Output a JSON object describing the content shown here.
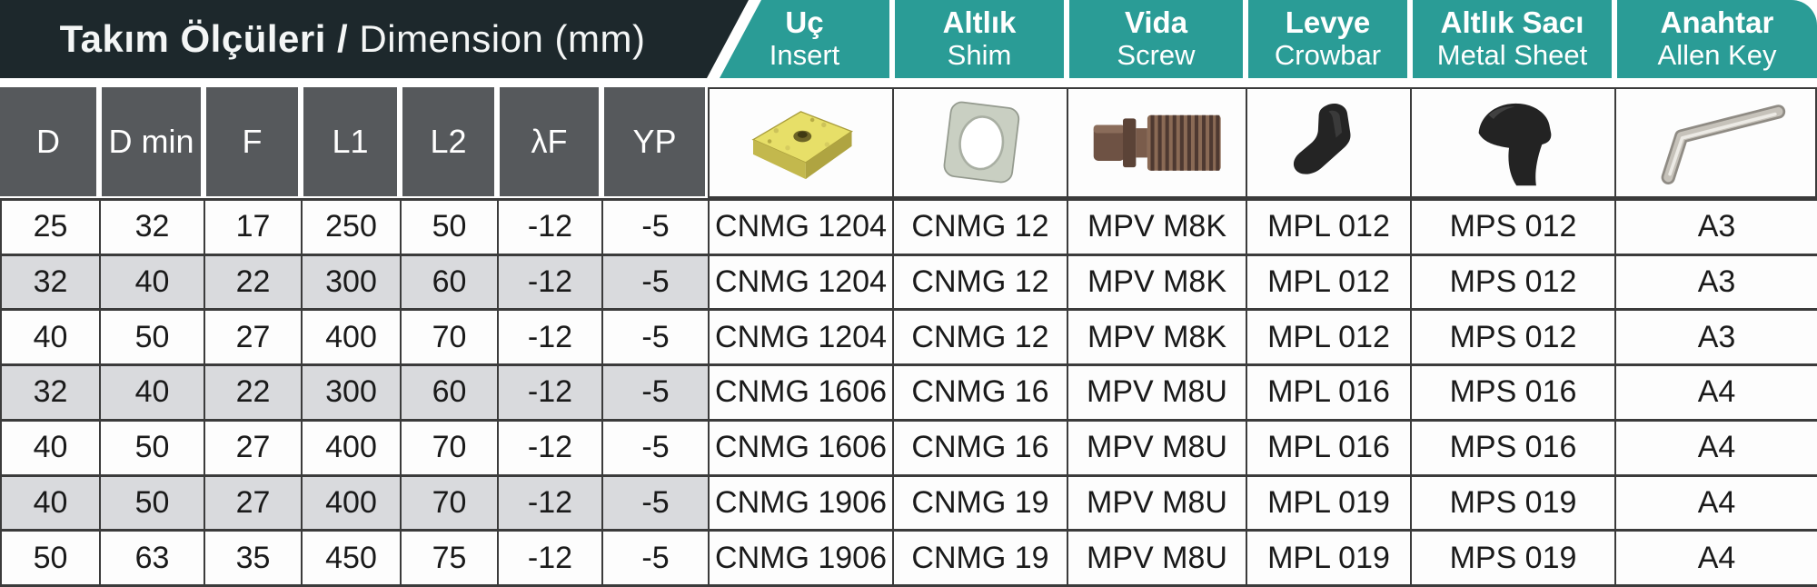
{
  "document": {
    "title_bold": "Takım Ölçüleri /",
    "title_regular": "Dimension (mm)"
  },
  "product_columns": [
    {
      "name_tr": "Uç",
      "name_en": "Insert",
      "icon": "insert-photo"
    },
    {
      "name_tr": "Altlık",
      "name_en": "Shim",
      "icon": "shim-photo"
    },
    {
      "name_tr": "Vida",
      "name_en": "Screw",
      "icon": "screw-photo"
    },
    {
      "name_tr": "Levye",
      "name_en": "Crowbar",
      "icon": "crowbar-photo"
    },
    {
      "name_tr": "Altlık Sacı",
      "name_en": "Metal Sheet",
      "icon": "metal-sheet-photo"
    },
    {
      "name_tr": "Anahtar",
      "name_en": "Allen Key",
      "icon": "allen-key-photo"
    }
  ],
  "dimension_columns": [
    "D",
    "D min",
    "F",
    "L1",
    "L2",
    "λF",
    "YP"
  ],
  "rows": [
    {
      "shaded": false,
      "dims": [
        "25",
        "32",
        "17",
        "250",
        "50",
        "-12",
        "-5"
      ],
      "products": [
        "CNMG 1204",
        "CNMG 12",
        "MPV M8K",
        "MPL 012",
        "MPS 012",
        "A3"
      ]
    },
    {
      "shaded": true,
      "dims": [
        "32",
        "40",
        "22",
        "300",
        "60",
        "-12",
        "-5"
      ],
      "products": [
        "CNMG 1204",
        "CNMG 12",
        "MPV M8K",
        "MPL 012",
        "MPS 012",
        "A3"
      ]
    },
    {
      "shaded": false,
      "dims": [
        "40",
        "50",
        "27",
        "400",
        "70",
        "-12",
        "-5"
      ],
      "products": [
        "CNMG 1204",
        "CNMG 12",
        "MPV M8K",
        "MPL 012",
        "MPS 012",
        "A3"
      ]
    },
    {
      "shaded": true,
      "dims": [
        "32",
        "40",
        "22",
        "300",
        "60",
        "-12",
        "-5"
      ],
      "products": [
        "CNMG 1606",
        "CNMG 16",
        "MPV M8U",
        "MPL 016",
        "MPS 016",
        "A4"
      ]
    },
    {
      "shaded": false,
      "dims": [
        "40",
        "50",
        "27",
        "400",
        "70",
        "-12",
        "-5"
      ],
      "products": [
        "CNMG 1606",
        "CNMG 16",
        "MPV M8U",
        "MPL 016",
        "MPS 016",
        "A4"
      ]
    },
    {
      "shaded": true,
      "dims": [
        "40",
        "50",
        "27",
        "400",
        "70",
        "-12",
        "-5"
      ],
      "products": [
        "CNMG 1906",
        "CNMG 19",
        "MPV M8U",
        "MPL 019",
        "MPS 019",
        "A4"
      ]
    },
    {
      "shaded": false,
      "dims": [
        "50",
        "63",
        "35",
        "450",
        "75",
        "-12",
        "-5"
      ],
      "products": [
        "CNMG 1906",
        "CNMG 19",
        "MPV M8U",
        "MPL 019",
        "MPS 019",
        "A4"
      ]
    }
  ],
  "colors": {
    "teal": "#2a9c96",
    "dark_band": "#1d282c",
    "header_gray": "#56595c",
    "row_shaded": "#d9dadd",
    "border": "#3b3b3b"
  }
}
